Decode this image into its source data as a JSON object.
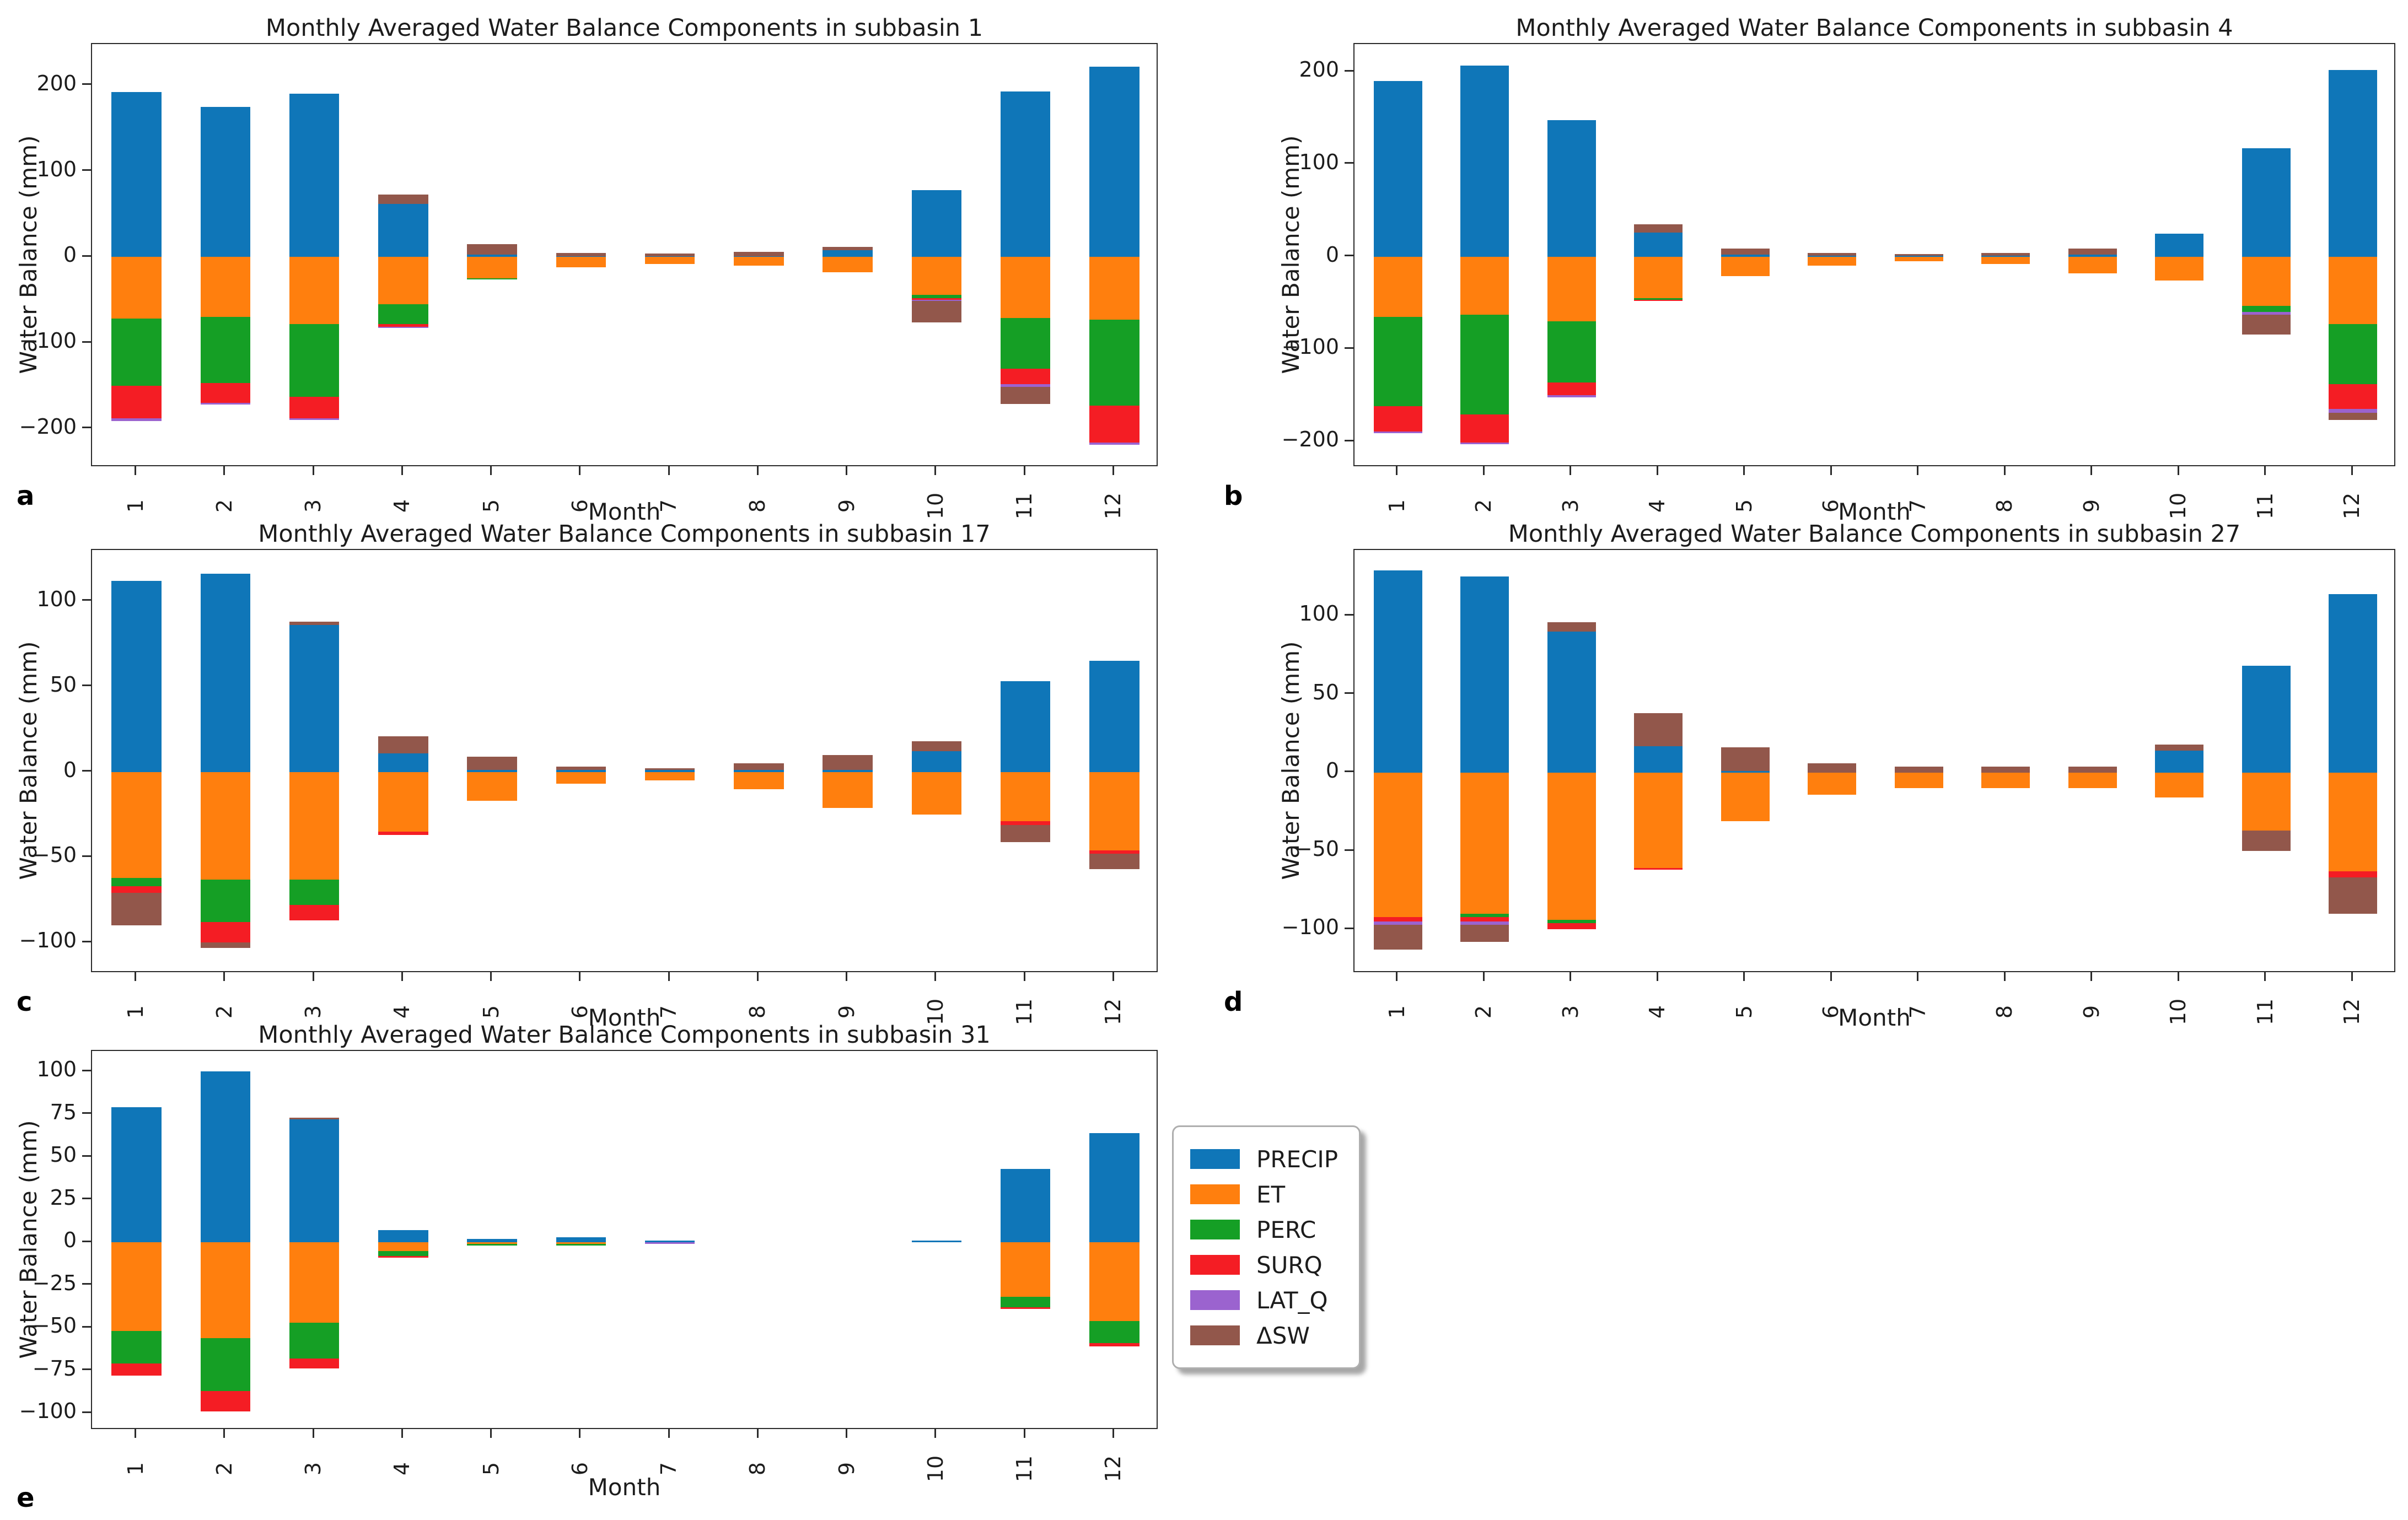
{
  "figure": {
    "xlabel": "Month",
    "ylabel": "Water Balance (mm)"
  },
  "legend": {
    "entries": [
      {
        "name": "PRECIP",
        "label": "PRECIP",
        "color": "#0f76b8"
      },
      {
        "name": "ET",
        "label": "ET",
        "color": "#ff7f0e"
      },
      {
        "name": "PERC",
        "label": "PERC",
        "color": "#159f25"
      },
      {
        "name": "SURQ",
        "label": "SURQ",
        "color": "#f41d24"
      },
      {
        "name": "LAT_Q",
        "label": "LAT_Q",
        "color": "#9b63cf"
      },
      {
        "name": "DSW",
        "label": "ΔSW",
        "color": "#92574b"
      }
    ]
  },
  "chart_data": [
    {
      "type": "bar",
      "stacked": true,
      "panel_letter": "a",
      "title": "Monthly Averaged Water Balance Components in subbasin 1",
      "xlabel": "Month",
      "ylabel": "Water Balance (mm)",
      "categories": [
        "1",
        "2",
        "3",
        "4",
        "5",
        "6",
        "7",
        "8",
        "9",
        "10",
        "11",
        "12"
      ],
      "ylim": [
        -245,
        248
      ],
      "yticks": [
        200,
        100,
        0,
        -100,
        -200
      ],
      "grid": false,
      "series": [
        {
          "name": "PRECIP",
          "label": "PRECIP",
          "color": "#0f76b8",
          "values": [
            192,
            175,
            190,
            62,
            3,
            1,
            1,
            1,
            8,
            78,
            193,
            222
          ]
        },
        {
          "name": "ET",
          "label": "ET",
          "color": "#ff7f0e",
          "values": [
            -72,
            -70,
            -78,
            -55,
            -25,
            -12,
            -8,
            -10,
            -18,
            -44,
            -71,
            -73
          ]
        },
        {
          "name": "PERC",
          "label": "PERC",
          "color": "#159f25",
          "values": [
            -78,
            -77,
            -85,
            -23,
            -1,
            0,
            0,
            0,
            0,
            -4,
            -59,
            -100
          ]
        },
        {
          "name": "SURQ",
          "label": "SURQ",
          "color": "#f41d24",
          "values": [
            -38,
            -23,
            -25,
            -3,
            0,
            0,
            0,
            0,
            0,
            -2,
            -18,
            -43
          ]
        },
        {
          "name": "LAT_Q",
          "label": "LAT_Q",
          "color": "#9b63cf",
          "values": [
            -3,
            -2,
            -2,
            -1,
            0,
            0,
            0,
            0,
            0,
            -1,
            -3,
            -3
          ]
        },
        {
          "name": "DSW",
          "label": "ΔSW",
          "color": "#92574b",
          "values": [
            0,
            0,
            0,
            11,
            12,
            4,
            3,
            5,
            4,
            -25,
            -20,
            0
          ]
        }
      ]
    },
    {
      "type": "bar",
      "stacked": true,
      "panel_letter": "b",
      "title": "Monthly Averaged Water Balance Components in subbasin 4",
      "xlabel": "Month",
      "ylabel": "Water Balance (mm)",
      "categories": [
        "1",
        "2",
        "3",
        "4",
        "5",
        "6",
        "7",
        "8",
        "9",
        "10",
        "11",
        "12"
      ],
      "ylim": [
        -228,
        230
      ],
      "yticks": [
        200,
        100,
        0,
        -100,
        -200
      ],
      "grid": false,
      "series": [
        {
          "name": "PRECIP",
          "label": "PRECIP",
          "color": "#0f76b8",
          "values": [
            190,
            207,
            148,
            26,
            2,
            1,
            1,
            1,
            2,
            25,
            117,
            202
          ]
        },
        {
          "name": "ET",
          "label": "ET",
          "color": "#ff7f0e",
          "values": [
            -65,
            -63,
            -70,
            -45,
            -21,
            -10,
            -5,
            -8,
            -18,
            -26,
            -53,
            -73
          ]
        },
        {
          "name": "PERC",
          "label": "PERC",
          "color": "#159f25",
          "values": [
            -97,
            -108,
            -66,
            -2,
            0,
            0,
            0,
            0,
            0,
            0,
            -7,
            -65
          ]
        },
        {
          "name": "SURQ",
          "label": "SURQ",
          "color": "#f41d24",
          "values": [
            -27,
            -30,
            -14,
            -1,
            0,
            0,
            0,
            0,
            0,
            0,
            0,
            -27
          ]
        },
        {
          "name": "LAT_Q",
          "label": "LAT_Q",
          "color": "#9b63cf",
          "values": [
            -2,
            -2,
            -2,
            0,
            0,
            0,
            0,
            0,
            0,
            0,
            -3,
            -4
          ]
        },
        {
          "name": "DSW",
          "label": "ΔSW",
          "color": "#92574b",
          "values": [
            0,
            0,
            0,
            9,
            7,
            3,
            2,
            3,
            7,
            0,
            -21,
            -8
          ]
        }
      ]
    },
    {
      "type": "bar",
      "stacked": true,
      "panel_letter": "c",
      "title": "Monthly Averaged Water Balance Components in subbasin 17",
      "xlabel": "Month",
      "ylabel": "Water Balance (mm)",
      "categories": [
        "1",
        "2",
        "3",
        "4",
        "5",
        "6",
        "7",
        "8",
        "9",
        "10",
        "11",
        "12"
      ],
      "ylim": [
        -118,
        130
      ],
      "yticks": [
        100,
        50,
        0,
        -50,
        -100
      ],
      "grid": false,
      "series": [
        {
          "name": "PRECIP",
          "label": "PRECIP",
          "color": "#0f76b8",
          "values": [
            112,
            116,
            86,
            11,
            1,
            1,
            1,
            1,
            1,
            12,
            53,
            65
          ]
        },
        {
          "name": "ET",
          "label": "ET",
          "color": "#ff7f0e",
          "values": [
            -62,
            -63,
            -63,
            -35,
            -17,
            -7,
            -5,
            -10,
            -21,
            -25,
            -29,
            -46
          ]
        },
        {
          "name": "PERC",
          "label": "PERC",
          "color": "#159f25",
          "values": [
            -5,
            -25,
            -15,
            0,
            0,
            0,
            0,
            0,
            0,
            0,
            0,
            0
          ]
        },
        {
          "name": "SURQ",
          "label": "SURQ",
          "color": "#f41d24",
          "values": [
            -4,
            -12,
            -9,
            -2,
            0,
            0,
            0,
            0,
            0,
            0,
            -2,
            -2
          ]
        },
        {
          "name": "LAT_Q",
          "label": "LAT_Q",
          "color": "#9b63cf",
          "values": [
            0,
            0,
            0,
            0,
            0,
            0,
            0,
            0,
            0,
            0,
            0,
            0
          ]
        },
        {
          "name": "DSW",
          "label": "ΔSW",
          "color": "#92574b",
          "values": [
            -19,
            -3,
            2,
            10,
            8,
            2,
            1,
            4,
            9,
            6,
            -10,
            -9
          ]
        }
      ]
    },
    {
      "type": "bar",
      "stacked": true,
      "panel_letter": "d",
      "title": "Monthly Averaged Water Balance Components in subbasin 27",
      "xlabel": "Month",
      "ylabel": "Water Balance (mm)",
      "categories": [
        "1",
        "2",
        "3",
        "4",
        "5",
        "6",
        "7",
        "8",
        "9",
        "10",
        "11",
        "12"
      ],
      "ylim": [
        -128,
        142
      ],
      "yticks": [
        100,
        50,
        0,
        -50,
        -100
      ],
      "grid": false,
      "series": [
        {
          "name": "PRECIP",
          "label": "PRECIP",
          "color": "#0f76b8",
          "values": [
            129,
            125,
            90,
            17,
            1,
            0,
            0,
            0,
            0,
            14,
            68,
            114
          ]
        },
        {
          "name": "ET",
          "label": "ET",
          "color": "#ff7f0e",
          "values": [
            -92,
            -90,
            -94,
            -61,
            -31,
            -14,
            -10,
            -10,
            -10,
            -16,
            -37,
            -63
          ]
        },
        {
          "name": "PERC",
          "label": "PERC",
          "color": "#159f25",
          "values": [
            0,
            -2,
            -2,
            0,
            0,
            0,
            0,
            0,
            0,
            0,
            0,
            0
          ]
        },
        {
          "name": "SURQ",
          "label": "SURQ",
          "color": "#f41d24",
          "values": [
            -3,
            -3,
            -4,
            -1,
            0,
            0,
            0,
            0,
            0,
            0,
            0,
            -4
          ]
        },
        {
          "name": "LAT_Q",
          "label": "LAT_Q",
          "color": "#9b63cf",
          "values": [
            -2,
            -2,
            0,
            0,
            0,
            0,
            0,
            0,
            0,
            0,
            0,
            0
          ]
        },
        {
          "name": "DSW",
          "label": "ΔSW",
          "color": "#92574b",
          "values": [
            -16,
            -11,
            6,
            21,
            15,
            6,
            4,
            4,
            4,
            4,
            -13,
            -23
          ]
        }
      ]
    },
    {
      "type": "bar",
      "stacked": true,
      "panel_letter": "e",
      "title": "Monthly Averaged Water Balance Components in subbasin 31",
      "xlabel": "Month",
      "ylabel": "Water Balance (mm)",
      "categories": [
        "1",
        "2",
        "3",
        "4",
        "5",
        "6",
        "7",
        "8",
        "9",
        "10",
        "11",
        "12"
      ],
      "ylim": [
        -110,
        112
      ],
      "yticks": [
        100,
        75,
        50,
        25,
        0,
        -25,
        -50,
        -75,
        -100
      ],
      "grid": false,
      "series": [
        {
          "name": "PRECIP",
          "label": "PRECIP",
          "color": "#0f76b8",
          "values": [
            79,
            100,
            72,
            7,
            2,
            3,
            1,
            0,
            0,
            1,
            43,
            64
          ]
        },
        {
          "name": "ET",
          "label": "ET",
          "color": "#ff7f0e",
          "values": [
            -52,
            -56,
            -47,
            -5,
            -1,
            -1,
            0,
            0,
            0,
            0,
            -32,
            -46
          ]
        },
        {
          "name": "PERC",
          "label": "PERC",
          "color": "#159f25",
          "values": [
            -19,
            -31,
            -21,
            -3,
            -1,
            -1,
            0,
            0,
            0,
            0,
            -6,
            -13
          ]
        },
        {
          "name": "SURQ",
          "label": "SURQ",
          "color": "#f41d24",
          "values": [
            -7,
            -12,
            -6,
            -1,
            0,
            0,
            0,
            0,
            0,
            0,
            -1,
            -2
          ]
        },
        {
          "name": "LAT_Q",
          "label": "LAT_Q",
          "color": "#9b63cf",
          "values": [
            0,
            0,
            0,
            0,
            0,
            0,
            -1,
            0,
            0,
            0,
            0,
            0
          ]
        },
        {
          "name": "DSW",
          "label": "ΔSW",
          "color": "#92574b",
          "values": [
            0,
            0,
            1,
            0,
            0,
            0,
            0,
            0,
            0,
            0,
            0,
            0
          ]
        }
      ]
    }
  ]
}
